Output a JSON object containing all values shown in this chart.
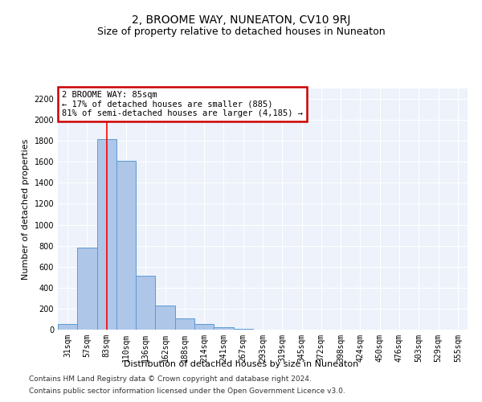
{
  "title": "2, BROOME WAY, NUNEATON, CV10 9RJ",
  "subtitle": "Size of property relative to detached houses in Nuneaton",
  "xlabel": "Distribution of detached houses by size in Nuneaton",
  "ylabel": "Number of detached properties",
  "footnote1": "Contains HM Land Registry data © Crown copyright and database right 2024.",
  "footnote2": "Contains public sector information licensed under the Open Government Licence v3.0.",
  "categories": [
    "31sqm",
    "57sqm",
    "83sqm",
    "110sqm",
    "136sqm",
    "162sqm",
    "188sqm",
    "214sqm",
    "241sqm",
    "267sqm",
    "293sqm",
    "319sqm",
    "345sqm",
    "372sqm",
    "398sqm",
    "424sqm",
    "450sqm",
    "476sqm",
    "503sqm",
    "529sqm",
    "555sqm"
  ],
  "values": [
    50,
    780,
    1820,
    1610,
    515,
    230,
    110,
    55,
    25,
    10,
    0,
    0,
    0,
    0,
    0,
    0,
    0,
    0,
    0,
    0,
    0
  ],
  "bar_color": "#aec6e8",
  "bar_edge_color": "#5b9bd5",
  "red_line_index": 2,
  "annotation_text": "2 BROOME WAY: 85sqm\n← 17% of detached houses are smaller (885)\n81% of semi-detached houses are larger (4,185) →",
  "annotation_box_color": "#ffffff",
  "annotation_box_edge": "#cc0000",
  "ylim": [
    0,
    2300
  ],
  "yticks": [
    0,
    200,
    400,
    600,
    800,
    1000,
    1200,
    1400,
    1600,
    1800,
    2000,
    2200
  ],
  "background_color": "#edf2fb",
  "grid_color": "#ffffff",
  "title_fontsize": 10,
  "subtitle_fontsize": 9,
  "axis_label_fontsize": 8,
  "tick_fontsize": 7,
  "footnote_fontsize": 6.5
}
